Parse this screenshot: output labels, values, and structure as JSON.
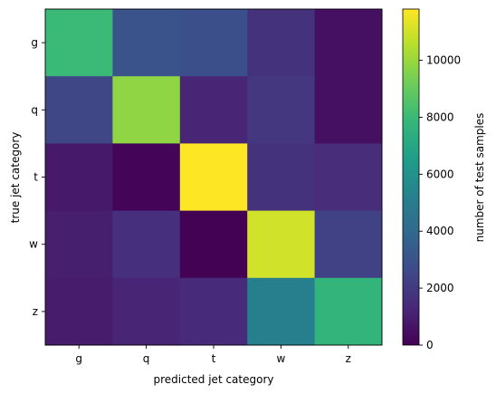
{
  "chart_data": {
    "type": "heatmap",
    "title": "",
    "xlabel": "predicted jet category",
    "ylabel": "true jet category",
    "x_categories": [
      "g",
      "q",
      "t",
      "w",
      "z"
    ],
    "y_categories": [
      "g",
      "q",
      "t",
      "w",
      "z"
    ],
    "values": [
      [
        8000,
        3000,
        2900,
        1700,
        500
      ],
      [
        2500,
        9800,
        1200,
        1900,
        500
      ],
      [
        800,
        150,
        11800,
        1700,
        1500
      ],
      [
        1000,
        1600,
        50,
        11000,
        2300
      ],
      [
        900,
        1200,
        1400,
        5100,
        7700
      ]
    ],
    "colorbar": {
      "label": "number of test samples",
      "ticks": [
        0,
        2000,
        4000,
        6000,
        8000,
        10000
      ],
      "range": [
        0,
        11800
      ]
    },
    "colormap": "viridis"
  }
}
